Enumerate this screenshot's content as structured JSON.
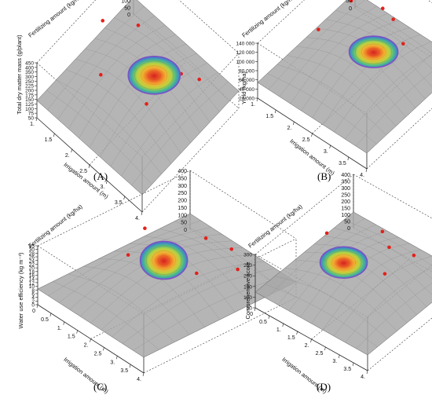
{
  "chart_data": [
    {
      "panel_label": "(A)",
      "type": "surface3d",
      "zlabel": "Total dry matter mass (g/plant)",
      "xlabel": "Irrigation amount (m)",
      "ylabel": "Fertilizing amount (kg/ha)",
      "x_ticks": [
        "1.",
        "1.5",
        "2.",
        "2.5",
        "3.",
        "3.5",
        "4."
      ],
      "y_ticks": [
        "0",
        "50",
        "100",
        "150",
        "200",
        "250",
        "300",
        "350",
        "400"
      ],
      "z_ticks": [
        "50",
        "75",
        "100",
        "125",
        "150",
        "175",
        "200",
        "225",
        "250",
        "300",
        "350",
        "400",
        "450"
      ],
      "xlim": [
        1,
        4
      ],
      "ylim": [
        0,
        400
      ]
    },
    {
      "panel_label": "(B)",
      "type": "surface3d",
      "zlabel": "Yield (kg/ha)",
      "xlabel": "Irrigation amount (m)",
      "ylabel": "Fertilizing amount (kg/ha)",
      "x_ticks": [
        "1.",
        "1.5",
        "2.",
        "2.5",
        "3.",
        "3.5",
        "4."
      ],
      "y_ticks": [
        "0",
        "50",
        "100",
        "150",
        "200",
        "250",
        "300",
        "350"
      ],
      "z_ticks": [
        "20 000",
        "40 000",
        "60 000",
        "80 000",
        "100 000",
        "120 000",
        "140 000"
      ],
      "xlim": [
        1,
        4
      ],
      "ylim": [
        0,
        350
      ]
    },
    {
      "panel_label": "(C)",
      "type": "surface3d",
      "zlabel": "Water use efficiency (kg m⁻³)",
      "xlabel": "Irrigation amount (m)",
      "ylabel": "Fertilizing amount (kg/ha)",
      "x_ticks": [
        "0",
        "0.5",
        "1.",
        "1.5",
        "2.",
        "2.5",
        "3.",
        "3.5",
        "4."
      ],
      "y_ticks": [
        "0",
        "50",
        "100",
        "150",
        "200",
        "250",
        "300",
        "350",
        "400"
      ],
      "z_ticks": [
        "0",
        "2",
        "4",
        "6",
        "8",
        "10",
        "12",
        "14",
        "16",
        "18",
        "20",
        "22",
        "24",
        "26",
        "28",
        "30",
        "35"
      ],
      "xlim": [
        0,
        4
      ],
      "ylim": [
        0,
        400
      ]
    },
    {
      "panel_label": "(D)",
      "type": "surface3d",
      "zlabel": "Comprehensive score",
      "xlabel": "Irrigation amount (m)",
      "ylabel": "Fertilizing amount (kg/ha)",
      "x_ticks": [
        "0",
        "0.5",
        "1.",
        "1.5",
        "2.",
        "2.5",
        "3.",
        "3.5",
        "4."
      ],
      "y_ticks": [
        "0",
        "50",
        "100",
        "150",
        "200",
        "250",
        "300",
        "350",
        "400"
      ],
      "z_ticks": [
        "50",
        "100",
        "150",
        "200",
        "250",
        "300"
      ],
      "xlim": [
        0,
        4
      ],
      "ylim": [
        0,
        400
      ]
    }
  ],
  "colors": {
    "surface": "#a8a8a8",
    "surface_edge": "#5c5c5c",
    "points": "#e2221b",
    "optimum_rim": "#7a52c4"
  }
}
